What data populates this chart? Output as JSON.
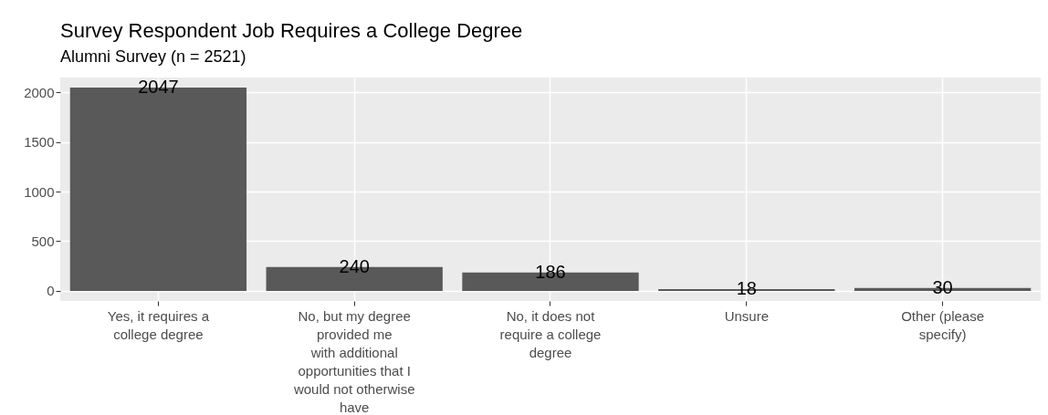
{
  "chart_data": {
    "type": "bar",
    "title": "Survey Respondent Job Requires a College Degree",
    "subtitle": "Alumni Survey (n = 2521)",
    "categories": [
      "Yes, it requires a\ncollege degree",
      "No, but my degree\nprovided me\nwith additional\nopportunities that I\nwould not otherwise\nhave",
      "No, it does not\nrequire a college\ndegree",
      "Unsure",
      "Other (please\nspecify)"
    ],
    "values": [
      2047,
      240,
      186,
      18,
      30
    ],
    "color": "#595959",
    "ylim": [
      -102,
      2149
    ],
    "yticks": [
      0,
      500,
      1000,
      1500,
      2000
    ],
    "grid": true,
    "data_labels": true
  }
}
